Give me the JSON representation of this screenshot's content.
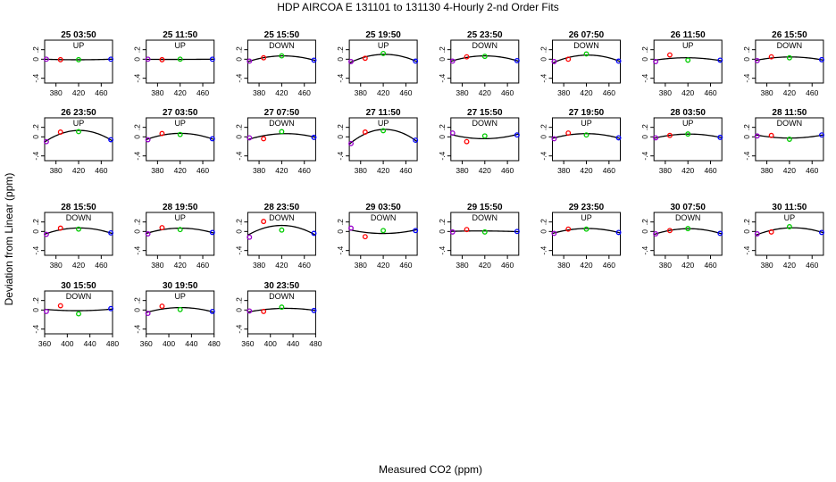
{
  "chart_data": {
    "type": "scatter",
    "title": "HDP   AIRCOA E   131101 to 131130   4-Hourly 2-nd Order Fits",
    "xlabel": "Measured CO2 (ppm)",
    "ylabel": "Deviation from Linear (ppm)",
    "point_colors": [
      "#9900cc",
      "#ff0000",
      "#00cc00",
      "#0000ff"
    ],
    "fit_color": "#000000",
    "panels": [
      {
        "label": "25 03:50",
        "dir": "UP",
        "xlim": [
          360,
          480
        ],
        "xticks": [
          380,
          420,
          460
        ],
        "ylim": [
          -0.5,
          0.4
        ],
        "yticks": [
          -0.4,
          0,
          0.2
        ],
        "x": [
          363,
          388,
          420,
          477
        ],
        "y": [
          0.0,
          -0.01,
          -0.01,
          0.0
        ]
      },
      {
        "label": "25 11:50",
        "dir": "UP",
        "xlim": [
          360,
          480
        ],
        "xticks": [
          380,
          420,
          460
        ],
        "ylim": [
          -0.5,
          0.4
        ],
        "yticks": [
          -0.4,
          0,
          0.2
        ],
        "x": [
          363,
          388,
          420,
          477
        ],
        "y": [
          0.0,
          -0.01,
          0.0,
          0.0
        ]
      },
      {
        "label": "25 15:50",
        "dir": "DOWN",
        "xlim": [
          360,
          480
        ],
        "xticks": [
          380,
          420,
          460
        ],
        "ylim": [
          -0.5,
          0.4
        ],
        "yticks": [
          -0.4,
          0,
          0.2
        ],
        "x": [
          363,
          388,
          420,
          477
        ],
        "y": [
          -0.04,
          0.03,
          0.07,
          -0.02
        ]
      },
      {
        "label": "25 19:50",
        "dir": "UP",
        "xlim": [
          360,
          480
        ],
        "xticks": [
          380,
          420,
          460
        ],
        "ylim": [
          -0.5,
          0.4
        ],
        "yticks": [
          -0.4,
          0,
          0.2
        ],
        "x": [
          363,
          388,
          420,
          477
        ],
        "y": [
          -0.05,
          0.02,
          0.12,
          -0.04
        ]
      },
      {
        "label": "25 23:50",
        "dir": "DOWN",
        "xlim": [
          360,
          480
        ],
        "xticks": [
          380,
          420,
          460
        ],
        "ylim": [
          -0.5,
          0.4
        ],
        "yticks": [
          -0.4,
          0,
          0.2
        ],
        "x": [
          363,
          388,
          420,
          477
        ],
        "y": [
          -0.04,
          0.05,
          0.06,
          -0.03
        ]
      },
      {
        "label": "26 07:50",
        "dir": "DOWN",
        "xlim": [
          360,
          480
        ],
        "xticks": [
          380,
          420,
          460
        ],
        "ylim": [
          -0.5,
          0.4
        ],
        "yticks": [
          -0.4,
          0,
          0.2
        ],
        "x": [
          363,
          388,
          420,
          477
        ],
        "y": [
          -0.05,
          0.0,
          0.11,
          -0.04
        ]
      },
      {
        "label": "26 11:50",
        "dir": "UP",
        "xlim": [
          360,
          480
        ],
        "xticks": [
          380,
          420,
          460
        ],
        "ylim": [
          -0.5,
          0.4
        ],
        "yticks": [
          -0.4,
          0,
          0.2
        ],
        "x": [
          363,
          388,
          420,
          477
        ],
        "y": [
          -0.05,
          0.09,
          -0.02,
          -0.02
        ]
      },
      {
        "label": "26 15:50",
        "dir": "DOWN",
        "xlim": [
          360,
          480
        ],
        "xticks": [
          380,
          420,
          460
        ],
        "ylim": [
          -0.5,
          0.4
        ],
        "yticks": [
          -0.4,
          0,
          0.2
        ],
        "x": [
          363,
          388,
          420,
          477
        ],
        "y": [
          -0.03,
          0.05,
          0.03,
          -0.01
        ]
      },
      {
        "label": "26 23:50",
        "dir": "UP",
        "xlim": [
          360,
          480
        ],
        "xticks": [
          380,
          420,
          460
        ],
        "ylim": [
          -0.5,
          0.4
        ],
        "yticks": [
          -0.4,
          0,
          0.2
        ],
        "x": [
          363,
          388,
          420,
          477
        ],
        "y": [
          -0.1,
          0.1,
          0.11,
          -0.06
        ]
      },
      {
        "label": "27 03:50",
        "dir": "UP",
        "xlim": [
          360,
          480
        ],
        "xticks": [
          380,
          420,
          460
        ],
        "ylim": [
          -0.5,
          0.4
        ],
        "yticks": [
          -0.4,
          0,
          0.2
        ],
        "x": [
          363,
          388,
          420,
          477
        ],
        "y": [
          -0.06,
          0.07,
          0.05,
          -0.04
        ]
      },
      {
        "label": "27 07:50",
        "dir": "DOWN",
        "xlim": [
          360,
          480
        ],
        "xticks": [
          380,
          420,
          460
        ],
        "ylim": [
          -0.5,
          0.4
        ],
        "yticks": [
          -0.4,
          0,
          0.2
        ],
        "x": [
          363,
          388,
          420,
          477
        ],
        "y": [
          -0.02,
          -0.04,
          0.11,
          -0.01
        ]
      },
      {
        "label": "27 11:50",
        "dir": "UP",
        "xlim": [
          360,
          480
        ],
        "xticks": [
          380,
          420,
          460
        ],
        "ylim": [
          -0.5,
          0.4
        ],
        "yticks": [
          -0.4,
          0,
          0.2
        ],
        "x": [
          363,
          388,
          420,
          477
        ],
        "y": [
          -0.14,
          0.1,
          0.13,
          -0.07
        ]
      },
      {
        "label": "27 15:50",
        "dir": "DOWN",
        "xlim": [
          360,
          480
        ],
        "xticks": [
          380,
          420,
          460
        ],
        "ylim": [
          -0.5,
          0.4
        ],
        "yticks": [
          -0.4,
          0,
          0.2
        ],
        "x": [
          363,
          388,
          420,
          477
        ],
        "y": [
          0.08,
          -0.1,
          0.02,
          0.04
        ]
      },
      {
        "label": "27 19:50",
        "dir": "UP",
        "xlim": [
          360,
          480
        ],
        "xticks": [
          380,
          420,
          460
        ],
        "ylim": [
          -0.5,
          0.4
        ],
        "yticks": [
          -0.4,
          0,
          0.2
        ],
        "x": [
          363,
          388,
          420,
          477
        ],
        "y": [
          -0.04,
          0.08,
          0.04,
          -0.02
        ]
      },
      {
        "label": "28 03:50",
        "dir": "UP",
        "xlim": [
          360,
          480
        ],
        "xticks": [
          380,
          420,
          460
        ],
        "ylim": [
          -0.5,
          0.4
        ],
        "yticks": [
          -0.4,
          0,
          0.2
        ],
        "x": [
          363,
          388,
          420,
          477
        ],
        "y": [
          -0.02,
          0.03,
          0.06,
          -0.01
        ]
      },
      {
        "label": "28 11:50",
        "dir": "DOWN",
        "xlim": [
          360,
          480
        ],
        "xticks": [
          380,
          420,
          460
        ],
        "ylim": [
          -0.5,
          0.4
        ],
        "yticks": [
          -0.4,
          0,
          0.2
        ],
        "x": [
          363,
          388,
          420,
          477
        ],
        "y": [
          0.02,
          0.03,
          -0.05,
          0.04
        ]
      },
      {
        "label": "28 15:50",
        "dir": "DOWN",
        "xlim": [
          360,
          480
        ],
        "xticks": [
          380,
          420,
          460
        ],
        "ylim": [
          -0.5,
          0.4
        ],
        "yticks": [
          -0.4,
          0,
          0.2
        ],
        "x": [
          363,
          388,
          420,
          477
        ],
        "y": [
          -0.06,
          0.07,
          0.05,
          -0.03
        ]
      },
      {
        "label": "28 19:50",
        "dir": "UP",
        "xlim": [
          360,
          480
        ],
        "xticks": [
          380,
          420,
          460
        ],
        "ylim": [
          -0.5,
          0.4
        ],
        "yticks": [
          -0.4,
          0,
          0.2
        ],
        "x": [
          363,
          388,
          420,
          477
        ],
        "y": [
          -0.05,
          0.08,
          0.04,
          -0.02
        ]
      },
      {
        "label": "28 23:50",
        "dir": "DOWN",
        "xlim": [
          360,
          480
        ],
        "xticks": [
          380,
          420,
          460
        ],
        "ylim": [
          -0.5,
          0.4
        ],
        "yticks": [
          -0.4,
          0,
          0.2
        ],
        "x": [
          363,
          388,
          420,
          477
        ],
        "y": [
          -0.12,
          0.21,
          0.03,
          -0.04
        ]
      },
      {
        "label": "29 03:50",
        "dir": "DOWN",
        "xlim": [
          360,
          480
        ],
        "xticks": [
          380,
          420,
          460
        ],
        "ylim": [
          -0.5,
          0.4
        ],
        "yticks": [
          -0.4,
          0,
          0.2
        ],
        "x": [
          363,
          388,
          420,
          477
        ],
        "y": [
          0.07,
          -0.11,
          0.02,
          0.02
        ]
      },
      {
        "label": "29 15:50",
        "dir": "DOWN",
        "xlim": [
          360,
          480
        ],
        "xticks": [
          380,
          420,
          460
        ],
        "ylim": [
          -0.5,
          0.4
        ],
        "yticks": [
          -0.4,
          0,
          0.2
        ],
        "x": [
          363,
          388,
          420,
          477
        ],
        "y": [
          -0.01,
          0.04,
          -0.01,
          0.0
        ]
      },
      {
        "label": "29 23:50",
        "dir": "UP",
        "xlim": [
          360,
          480
        ],
        "xticks": [
          380,
          420,
          460
        ],
        "ylim": [
          -0.5,
          0.4
        ],
        "yticks": [
          -0.4,
          0,
          0.2
        ],
        "x": [
          363,
          388,
          420,
          477
        ],
        "y": [
          -0.04,
          0.05,
          0.05,
          -0.02
        ]
      },
      {
        "label": "30 07:50",
        "dir": "DOWN",
        "xlim": [
          360,
          480
        ],
        "xticks": [
          380,
          420,
          460
        ],
        "ylim": [
          -0.5,
          0.4
        ],
        "yticks": [
          -0.4,
          0,
          0.2
        ],
        "x": [
          363,
          388,
          420,
          477
        ],
        "y": [
          -0.05,
          0.02,
          0.06,
          -0.04
        ]
      },
      {
        "label": "30 11:50",
        "dir": "UP",
        "xlim": [
          360,
          480
        ],
        "xticks": [
          380,
          420,
          460
        ],
        "ylim": [
          -0.5,
          0.4
        ],
        "yticks": [
          -0.4,
          0,
          0.2
        ],
        "x": [
          363,
          388,
          420,
          477
        ],
        "y": [
          -0.05,
          -0.01,
          0.1,
          -0.02
        ]
      },
      {
        "label": "30 15:50",
        "dir": "DOWN",
        "xlim": [
          360,
          480
        ],
        "xticks": [
          360,
          400,
          440,
          480
        ],
        "ylim": [
          -0.5,
          0.4
        ],
        "yticks": [
          -0.4,
          0,
          0.2
        ],
        "x": [
          363,
          388,
          420,
          477
        ],
        "y": [
          -0.03,
          0.09,
          -0.08,
          0.03
        ]
      },
      {
        "label": "30 19:50",
        "dir": "UP",
        "xlim": [
          360,
          480
        ],
        "xticks": [
          360,
          400,
          440,
          480
        ],
        "ylim": [
          -0.5,
          0.4
        ],
        "yticks": [
          -0.4,
          0,
          0.2
        ],
        "x": [
          363,
          388,
          420,
          477
        ],
        "y": [
          -0.07,
          0.08,
          0.01,
          -0.03
        ]
      },
      {
        "label": "30 23:50",
        "dir": "DOWN",
        "xlim": [
          360,
          480
        ],
        "xticks": [
          360,
          400,
          440,
          480
        ],
        "ylim": [
          -0.5,
          0.4
        ],
        "yticks": [
          -0.4,
          0,
          0.2
        ],
        "x": [
          363,
          388,
          420,
          477
        ],
        "y": [
          -0.02,
          -0.03,
          0.06,
          -0.01
        ]
      }
    ]
  }
}
